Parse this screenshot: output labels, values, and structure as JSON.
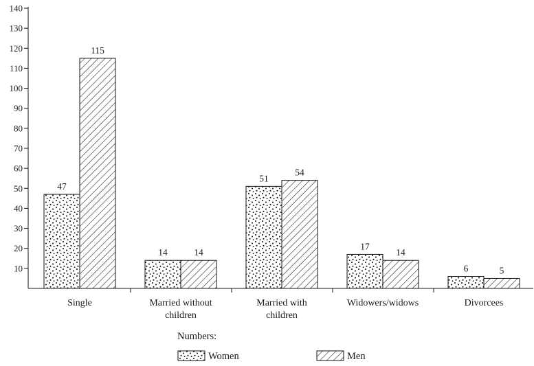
{
  "chart_data": {
    "type": "bar",
    "categories": [
      "Single",
      "Married without children",
      "Married with children",
      "Widowers/widows",
      "Divorcees"
    ],
    "category_lines": [
      [
        "Single"
      ],
      [
        "Married without",
        "children"
      ],
      [
        "Married with",
        "children"
      ],
      [
        "Widowers/widows"
      ],
      [
        "Divorcees"
      ]
    ],
    "series": [
      {
        "name": "Women",
        "values": [
          47,
          14,
          51,
          17,
          6
        ],
        "pattern": "dots"
      },
      {
        "name": "Men",
        "values": [
          115,
          14,
          54,
          14,
          5
        ],
        "pattern": "diagonal-hatch"
      }
    ],
    "ylim": [
      0,
      140
    ],
    "yticks": [
      10,
      20,
      30,
      40,
      50,
      60,
      70,
      80,
      90,
      100,
      110,
      120,
      130,
      140
    ],
    "ytick_labels": [
      "10",
      "20",
      "30",
      "40",
      "50",
      "60",
      "70",
      "80",
      "90",
      "100",
      "110",
      "120",
      "130",
      "140"
    ],
    "data_labels": true,
    "legend_title": "Numbers:",
    "legend_position": "bottom-center",
    "grid": false,
    "colors": {
      "stroke": "#111111",
      "fill": "#ffffff"
    }
  }
}
